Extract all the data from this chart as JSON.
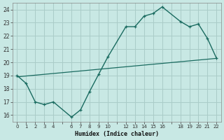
{
  "xlabel": "Humidex (Indice chaleur)",
  "bg_color": "#c8e8e4",
  "grid_color": "#aaccc8",
  "line_color": "#1a6b60",
  "ylim": [
    15.5,
    24.5
  ],
  "yticks": [
    16,
    17,
    18,
    19,
    20,
    21,
    22,
    23,
    24
  ],
  "x_labels": [
    "0",
    "1",
    "2",
    "3",
    "4",
    "",
    "6",
    "7",
    "8",
    "9",
    "10",
    "",
    "12",
    "13",
    "14",
    "15",
    "16",
    "",
    "18",
    "19",
    "20",
    "21",
    "22"
  ],
  "curve_indices": [
    0,
    1,
    2,
    3,
    4,
    6,
    7,
    8,
    9,
    10,
    12,
    13,
    14,
    15,
    16,
    18,
    19,
    20,
    21,
    22
  ],
  "curve_y": [
    19.0,
    18.4,
    17.0,
    16.8,
    17.0,
    15.85,
    16.4,
    17.8,
    19.1,
    20.4,
    22.7,
    22.7,
    23.5,
    23.7,
    24.2,
    23.1,
    22.7,
    22.9,
    21.8,
    20.3
  ],
  "trend_indices": [
    0,
    22
  ],
  "trend_y": [
    18.9,
    20.3
  ]
}
